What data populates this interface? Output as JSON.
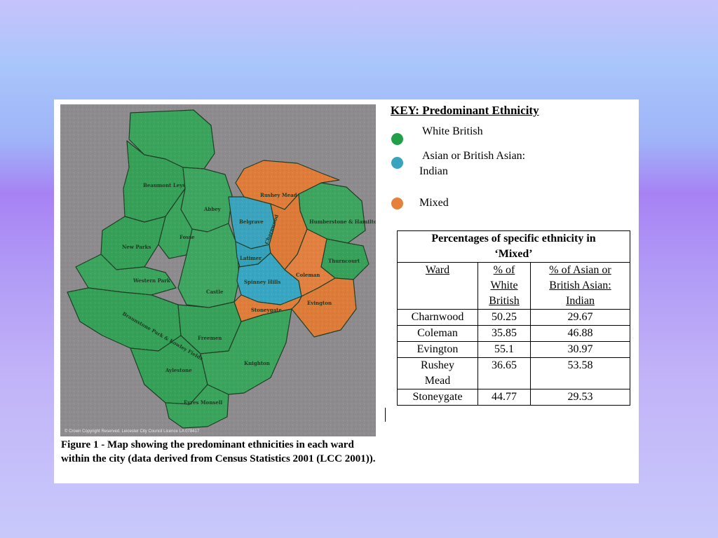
{
  "key": {
    "title": "KEY: Predominant Ethnicity",
    "items": [
      {
        "label": "White British",
        "color": "#22a048"
      },
      {
        "label": "Asian or British Asian:",
        "label_line2": "Indian",
        "color": "#38a4c0"
      },
      {
        "label": "Mixed",
        "color": "#e5813b"
      }
    ]
  },
  "map": {
    "wards": [
      {
        "name": "Beaumont Leys",
        "ethnicity": "White British"
      },
      {
        "name": "Abbey",
        "ethnicity": "White British"
      },
      {
        "name": "Rushey Mead",
        "ethnicity": "Mixed"
      },
      {
        "name": "Humberstone & Hamilton",
        "ethnicity": "White British"
      },
      {
        "name": "Fosse",
        "ethnicity": "White British"
      },
      {
        "name": "New Parks",
        "ethnicity": "White British"
      },
      {
        "name": "Belgrave",
        "ethnicity": "Asian or British Asian: Indian"
      },
      {
        "name": "Latimer",
        "ethnicity": "Asian or British Asian: Indian"
      },
      {
        "name": "Charnwood",
        "ethnicity": "Mixed"
      },
      {
        "name": "Thurncourt",
        "ethnicity": "White British"
      },
      {
        "name": "Coleman",
        "ethnicity": "Mixed"
      },
      {
        "name": "Western Park",
        "ethnicity": "White British"
      },
      {
        "name": "Spinney Hills",
        "ethnicity": "Asian or British Asian: Indian"
      },
      {
        "name": "Castle",
        "ethnicity": "White British"
      },
      {
        "name": "Braunstone Park & Rowley Fields",
        "ethnicity": "White British"
      },
      {
        "name": "Evington",
        "ethnicity": "Mixed"
      },
      {
        "name": "Stoneygate",
        "ethnicity": "Mixed"
      },
      {
        "name": "Freemen",
        "ethnicity": "White British"
      },
      {
        "name": "Knighton",
        "ethnicity": "White British"
      },
      {
        "name": "Aylestone",
        "ethnicity": "White British"
      },
      {
        "name": "Eyres Monsell",
        "ethnicity": "White British"
      }
    ],
    "copyright": "© Crown Copyright Reserved. Leicester City Council Licence LA 078417"
  },
  "caption": "Figure 1 - Map showing the predominant ethnicities in each ward within the city (data derived from Census Statistics 2001 (LCC 2001)).",
  "table": {
    "title_line1": "Percentages of specific ethnicity in",
    "title_line2": "‘Mixed’",
    "headers": {
      "ward": "Ward",
      "white_1": "% of",
      "white_2": "White",
      "white_3": "British",
      "asian_1": "% of Asian or",
      "asian_2": "British Asian:",
      "asian_3": "Indian"
    },
    "rows": [
      {
        "ward": "Charnwood",
        "white": "50.25",
        "asian": "29.67"
      },
      {
        "ward": "Coleman",
        "white": "35.85",
        "asian": "46.88"
      },
      {
        "ward": "Evington",
        "white": "55.1",
        "asian": "30.97"
      },
      {
        "ward": "Rushey Mead",
        "ward_line1": "Rushey",
        "ward_line2": "Mead",
        "white": "36.65",
        "asian": "53.58"
      },
      {
        "ward": "Stoneygate",
        "white": "44.77",
        "asian": "29.53"
      }
    ]
  }
}
